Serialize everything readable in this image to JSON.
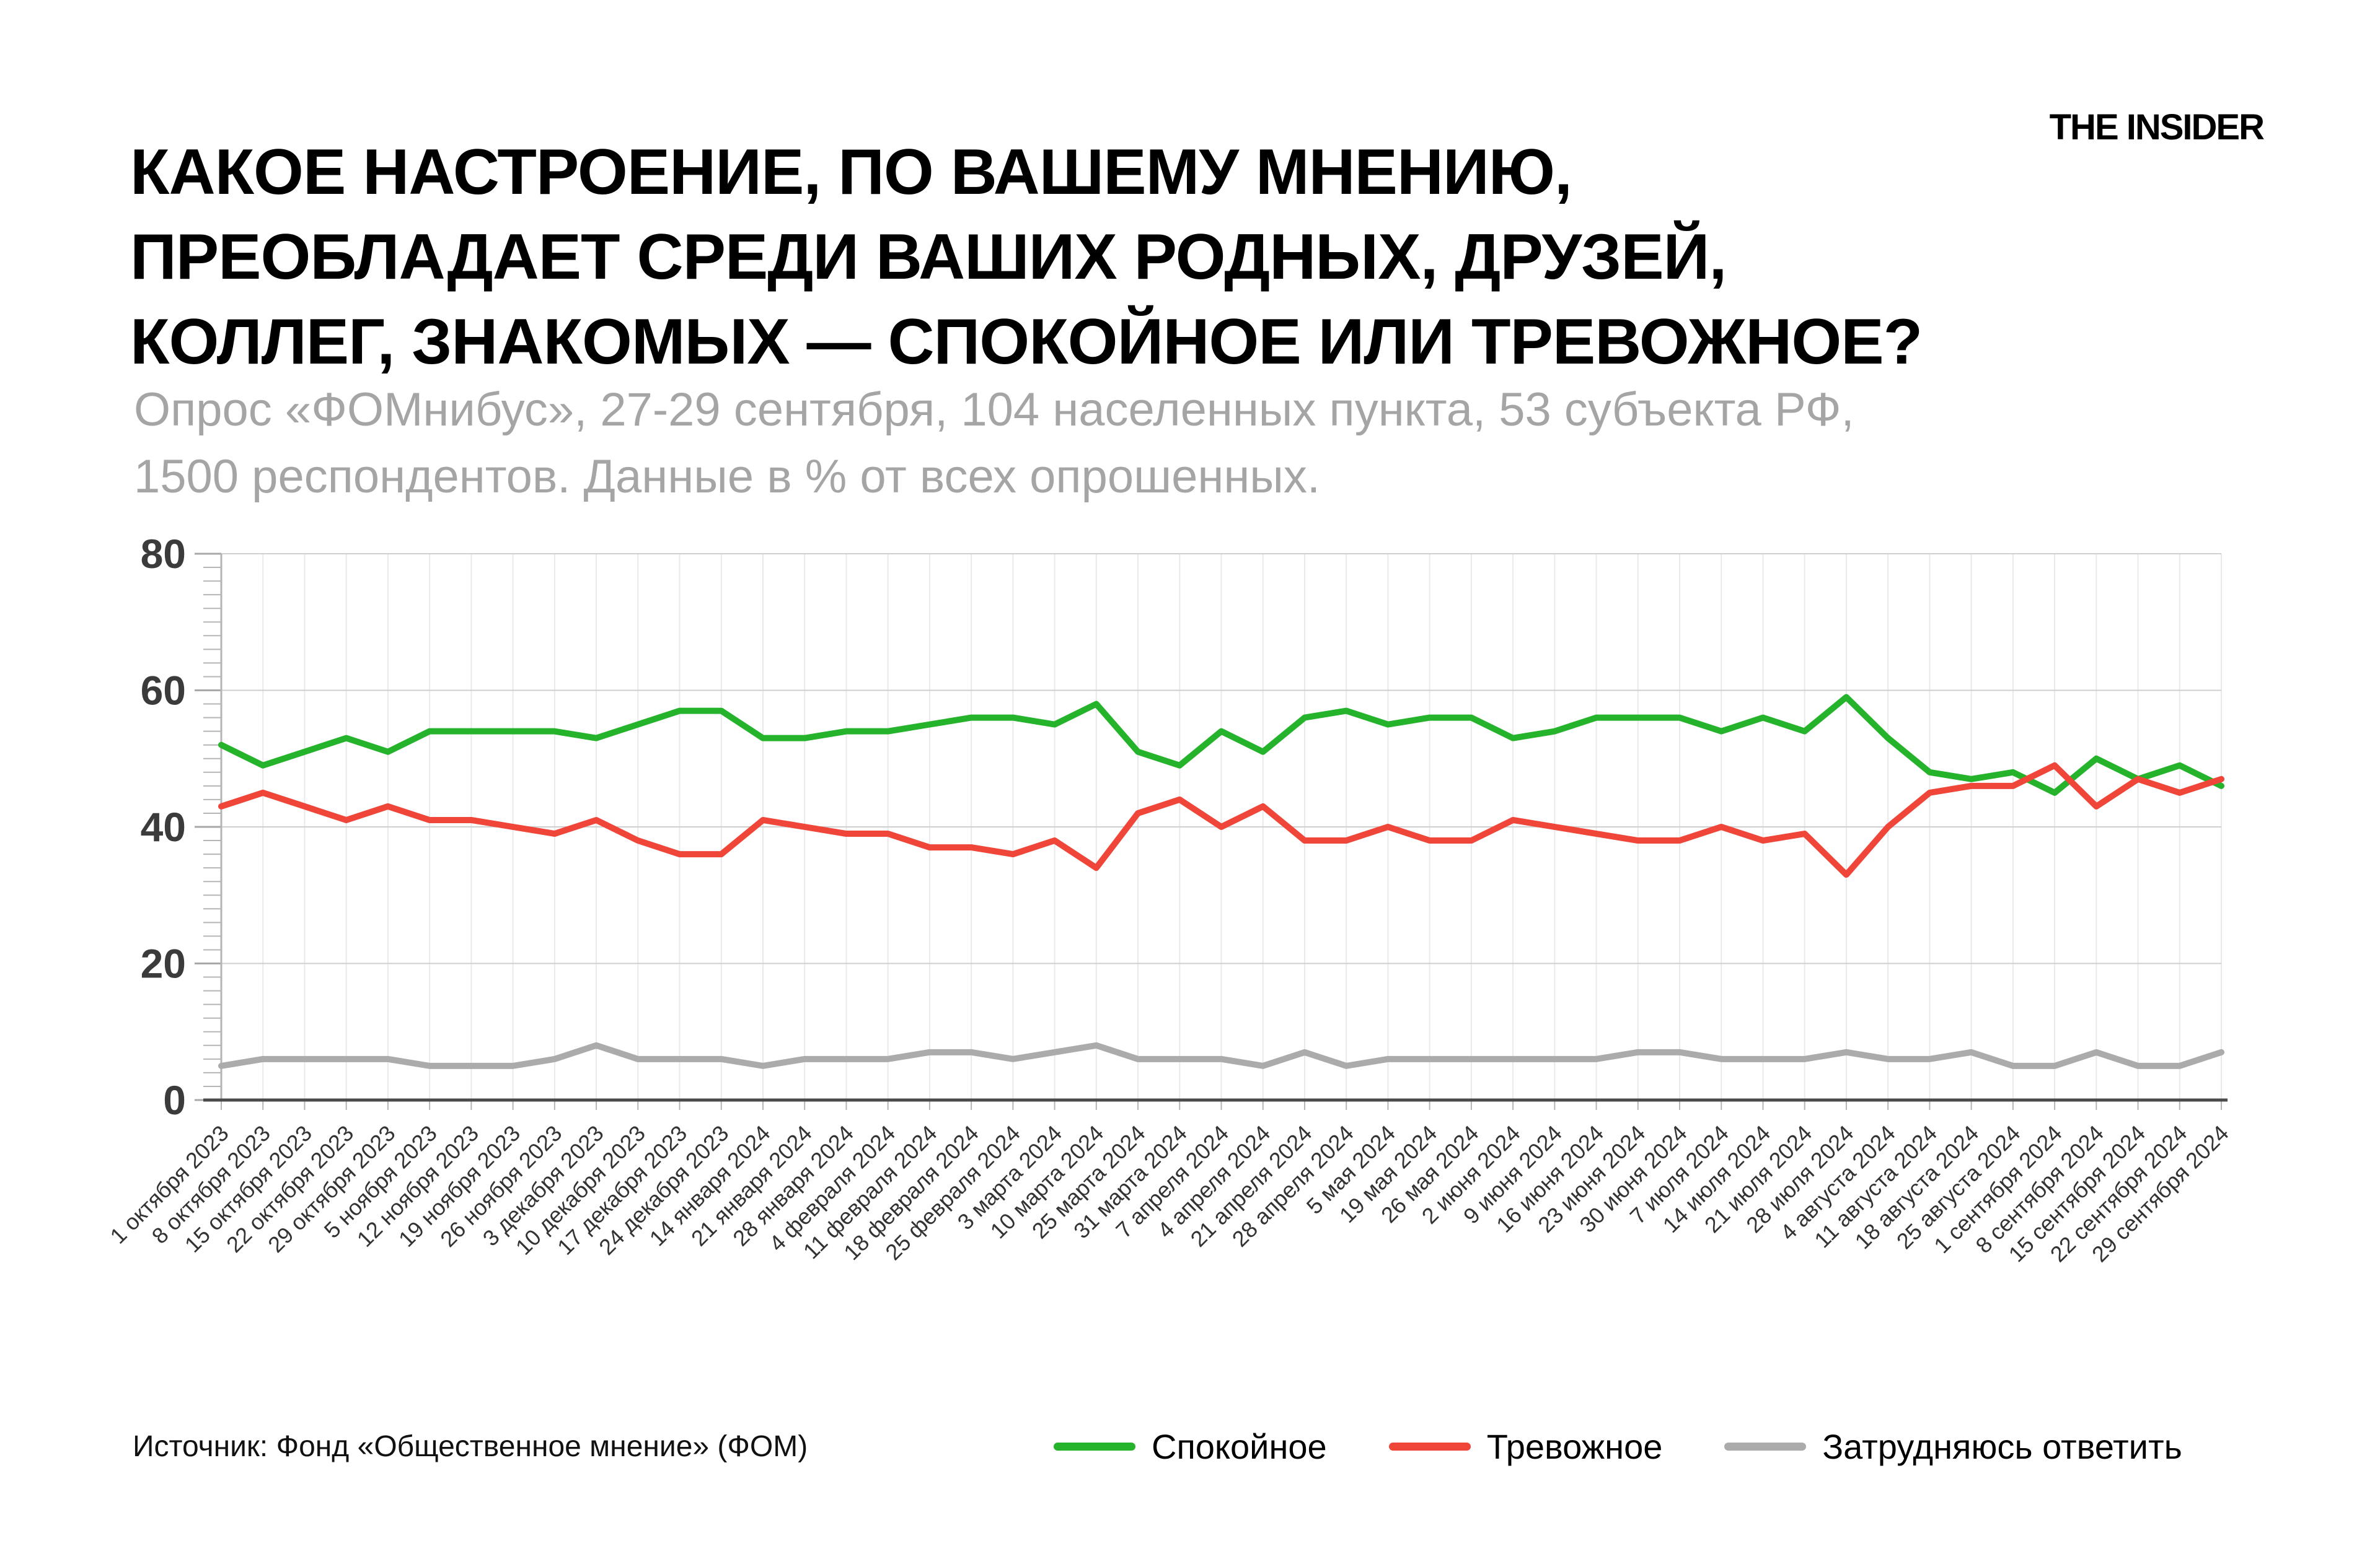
{
  "page": {
    "title": "КАКОЕ НАСТРОЕНИЕ, ПО ВАШЕМУ МНЕНИЮ,\nПРЕОБЛАДАЕТ СРЕДИ ВАШИХ РОДНЫХ, ДРУЗЕЙ,\nКОЛЛЕГ, ЗНАКОМЫХ — СПОКОЙНОЕ ИЛИ ТРЕВОЖНОЕ?",
    "subtitle": "Опрос «ФОМнибус», 27-29 сентября, 104 населенных пункта, 53 субъекта РФ,\n1500 респондентов. Данные в % от всех опрошенных.",
    "logo": "THE INSIDER",
    "source": "Источник: Фонд «Общественное мнение» (ФОМ)"
  },
  "chart_data": {
    "type": "line",
    "title": "",
    "xlabel": "",
    "ylabel": "",
    "ylim": [
      0,
      80
    ],
    "yticks": [
      0,
      20,
      40,
      60,
      80
    ],
    "grid": "on",
    "legend_position": "bottom",
    "categories": [
      "1 октября 2023",
      "8 октября 2023",
      "15 октября 2023",
      "22 октября 2023",
      "29 октября 2023",
      "5 ноября 2023",
      "12 ноября 2023",
      "19 ноября 2023",
      "26 ноября 2023",
      "3 декабря 2023",
      "10 декабря 2023",
      "17 декабря 2023",
      "24 декабря 2023",
      "14 января 2024",
      "21 января 2024",
      "28 января 2024",
      "4 февраля 2024",
      "11 февраля 2024",
      "18 февраля 2024",
      "25 февраля 2024",
      "3 марта 2024",
      "10 марта 2024",
      "25 марта 2024",
      "31 марта 2024",
      "7 апреля 2024",
      "4 апреля 2024",
      "21 апреля 2024",
      "28 апреля 2024",
      "5 мая 2024",
      "19 мая 2024",
      "26 мая 2024",
      "2 июня 2024",
      "9 июня 2024",
      "16 июня 2024",
      "23 июня 2024",
      "30 июня 2024",
      "7 июля 2024",
      "14 июля 2024",
      "21 июля 2024",
      "28 июля 2024",
      "4 августа 2024",
      "11 августа 2024",
      "18 августа 2024",
      "25 августа 2024",
      "1 сентября 2024",
      "8 сентября 2024",
      "15 сентября 2024",
      "22 сентября 2024",
      "29 сентября 2024"
    ],
    "series": [
      {
        "name": "Спокойное",
        "color": "#25b32c",
        "values": [
          52,
          49,
          51,
          53,
          51,
          54,
          54,
          54,
          54,
          53,
          55,
          57,
          57,
          53,
          53,
          54,
          54,
          55,
          56,
          56,
          55,
          58,
          51,
          49,
          54,
          51,
          56,
          57,
          55,
          56,
          56,
          53,
          54,
          56,
          56,
          56,
          54,
          56,
          54,
          59,
          53,
          48,
          47,
          48,
          45,
          50,
          47,
          49,
          46
        ]
      },
      {
        "name": "Тревожное",
        "color": "#ef4639",
        "values": [
          43,
          45,
          43,
          41,
          43,
          41,
          41,
          40,
          39,
          41,
          38,
          36,
          36,
          41,
          40,
          39,
          39,
          37,
          37,
          36,
          38,
          34,
          42,
          44,
          40,
          43,
          38,
          38,
          40,
          38,
          38,
          41,
          40,
          39,
          38,
          38,
          40,
          38,
          39,
          33,
          40,
          45,
          46,
          46,
          49,
          43,
          47,
          45,
          47
        ]
      },
      {
        "name": "Затрудняюсь ответить",
        "color": "#ababab",
        "values": [
          5,
          6,
          6,
          6,
          6,
          5,
          5,
          5,
          6,
          8,
          6,
          6,
          6,
          5,
          6,
          6,
          6,
          7,
          7,
          6,
          7,
          8,
          6,
          6,
          6,
          5,
          7,
          5,
          6,
          6,
          6,
          6,
          6,
          6,
          7,
          7,
          6,
          6,
          6,
          7,
          6,
          6,
          7,
          5,
          5,
          7,
          5,
          5,
          7
        ]
      }
    ]
  }
}
